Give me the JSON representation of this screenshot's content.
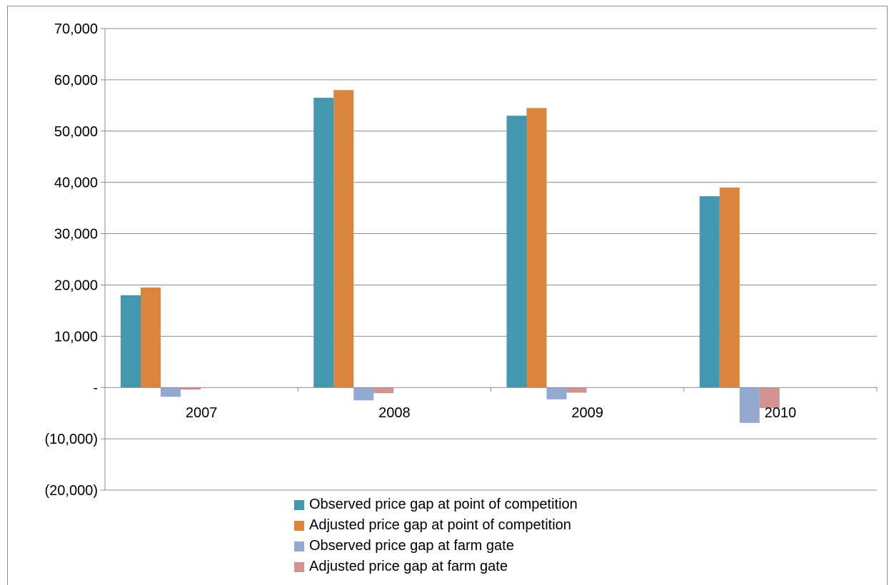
{
  "chart_data": {
    "type": "bar",
    "title": "",
    "xlabel": "",
    "ylabel": "",
    "categories": [
      "2007",
      "2008",
      "2009",
      "2010"
    ],
    "ylim": [
      -20000,
      70000
    ],
    "yticks": [
      70000,
      60000,
      50000,
      40000,
      30000,
      20000,
      10000,
      0,
      -10000,
      -20000
    ],
    "ytick_labels": [
      "70,000",
      "60,000",
      "50,000",
      "40,000",
      "30,000",
      "20,000",
      "10,000",
      "-",
      "(10,000)",
      "(20,000)"
    ],
    "grid": true,
    "legend_position": "bottom",
    "series": [
      {
        "name": "Observed price gap at point of competition",
        "color": "#4198af",
        "values": [
          18000,
          56500,
          53000,
          37300
        ]
      },
      {
        "name": "Adjusted price gap at point of competition",
        "color": "#db843d",
        "values": [
          19500,
          58000,
          54500,
          39000
        ]
      },
      {
        "name": "Observed price gap at farm gate",
        "color": "#93a9cf",
        "values": [
          -1800,
          -2500,
          -2300,
          -6900
        ]
      },
      {
        "name": "Adjusted price gap at farm gate",
        "color": "#d19392",
        "values": [
          -400,
          -1100,
          -1000,
          -4000
        ]
      }
    ]
  }
}
